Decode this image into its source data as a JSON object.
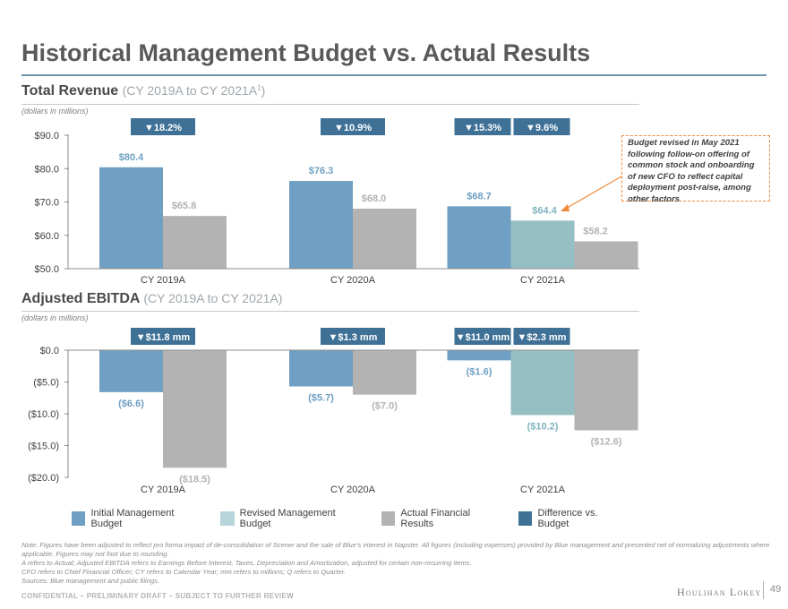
{
  "page": {
    "title": "Historical Management Budget vs. Actual Results",
    "confidential": "CONFIDENTIAL – PRELIMINARY DRAFT – SUBJECT TO FURTHER REVIEW",
    "logo": "Houlihan Lokey",
    "page_number": "49"
  },
  "revenue_section": {
    "title": "Total Revenue",
    "subtitle": "(CY 2019A to CY 2021A",
    "subtitle_sup": "1",
    "subtitle_end": ")",
    "units": "(dollars in millions)"
  },
  "ebitda_section": {
    "title": "Adjusted EBITDA",
    "subtitle": "(CY 2019A to CY 2021A)",
    "units": "(dollars in millions)"
  },
  "annotation": {
    "text": "Budget revised in May 2021 following follow-on offering of common stock and onboarding of new CFO to reflect capital deployment post-raise, among other factors"
  },
  "legend": [
    {
      "label": "Initial Management Budget",
      "color": "#6f9fc2"
    },
    {
      "label": "Revised Management Budget",
      "color": "#b8d5dc"
    },
    {
      "label": "Actual Financial Results",
      "color": "#b3b3b3"
    },
    {
      "label": "Difference vs. Budget",
      "color": "#3f7196"
    }
  ],
  "colors": {
    "initial": "#6f9fc2",
    "revised": "#96bfc4",
    "actual": "#b3b3b3",
    "badge": "#3f7196",
    "initial_label": "#6f9fc2",
    "revised_label": "#7fb3bd",
    "actual_label": "#b3b3b3"
  },
  "footnotes": [
    "Note: Figures have been adjusted to reflect pro forma impact of de-consolidation of Scener and the sale of Blue’s interest in Napster. All figures (including expenses) provided by Blue management and presented net of normalizing adjustments where applicable. Figures may not foot due to rounding.",
    "A refers to Actual; Adjusted EBITDA refers to Earnings Before Interest, Taxes, Depreciation and Amortization, adjusted for certain non-recurring items.",
    "CFO refers to Chief Financial Officer; CY refers to Calendar Year; mm refers to millions; Q refers to Quarter.",
    "Sources: Blue management and public filings."
  ],
  "chart_data": [
    {
      "type": "bar",
      "title": "Total Revenue",
      "categories": [
        "CY 2019A",
        "CY 2020A",
        "CY 2021A"
      ],
      "ylim": [
        50,
        90
      ],
      "yticks": [
        50,
        60,
        70,
        80,
        90
      ],
      "ytick_labels": [
        "$50.0",
        "$60.0",
        "$70.0",
        "$80.0",
        "$90.0"
      ],
      "series": [
        {
          "name": "Initial Management Budget",
          "key": "initial",
          "values": [
            80.4,
            76.3,
            68.7
          ],
          "labels": [
            "$80.4",
            "$76.3",
            "$68.7"
          ]
        },
        {
          "name": "Revised Management Budget",
          "key": "revised",
          "values": [
            null,
            null,
            64.4
          ],
          "labels": [
            null,
            null,
            "$64.4"
          ]
        },
        {
          "name": "Actual Financial Results",
          "key": "actual",
          "values": [
            65.8,
            68.0,
            58.2
          ],
          "labels": [
            "$65.8",
            "$68.0",
            "$58.2"
          ]
        }
      ],
      "differences": [
        {
          "category": "CY 2019A",
          "vs": "initial",
          "label": "▼18.2%"
        },
        {
          "category": "CY 2020A",
          "vs": "initial",
          "label": "▼10.9%"
        },
        {
          "category": "CY 2021A",
          "vs": "initial",
          "label": "▼15.3%"
        },
        {
          "category": "CY 2021A",
          "vs": "revised",
          "label": "▼9.6%"
        }
      ]
    },
    {
      "type": "bar",
      "title": "Adjusted EBITDA",
      "categories": [
        "CY 2019A",
        "CY 2020A",
        "CY 2021A"
      ],
      "ylim": [
        -20,
        0
      ],
      "yticks": [
        0,
        -5,
        -10,
        -15,
        -20
      ],
      "ytick_labels": [
        "$0.0",
        "($5.0)",
        "($10.0)",
        "($15.0)",
        "($20.0)"
      ],
      "series": [
        {
          "name": "Initial Management Budget",
          "key": "initial",
          "values": [
            -6.6,
            -5.7,
            -1.6
          ],
          "labels": [
            "($6.6)",
            "($5.7)",
            "($1.6)"
          ]
        },
        {
          "name": "Revised Management Budget",
          "key": "revised",
          "values": [
            null,
            null,
            -10.2
          ],
          "labels": [
            null,
            null,
            "($10.2)"
          ]
        },
        {
          "name": "Actual Financial Results",
          "key": "actual",
          "values": [
            -18.5,
            -7.0,
            -12.6
          ],
          "labels": [
            "($18.5)",
            "($7.0)",
            "($12.6)"
          ]
        }
      ],
      "differences": [
        {
          "category": "CY 2019A",
          "vs": "initial",
          "label": "▼$11.8 mm"
        },
        {
          "category": "CY 2020A",
          "vs": "initial",
          "label": "▼$1.3 mm"
        },
        {
          "category": "CY 2021A",
          "vs": "initial",
          "label": "▼$11.0 mm"
        },
        {
          "category": "CY 2021A",
          "vs": "revised",
          "label": "▼$2.3 mm"
        }
      ]
    }
  ]
}
